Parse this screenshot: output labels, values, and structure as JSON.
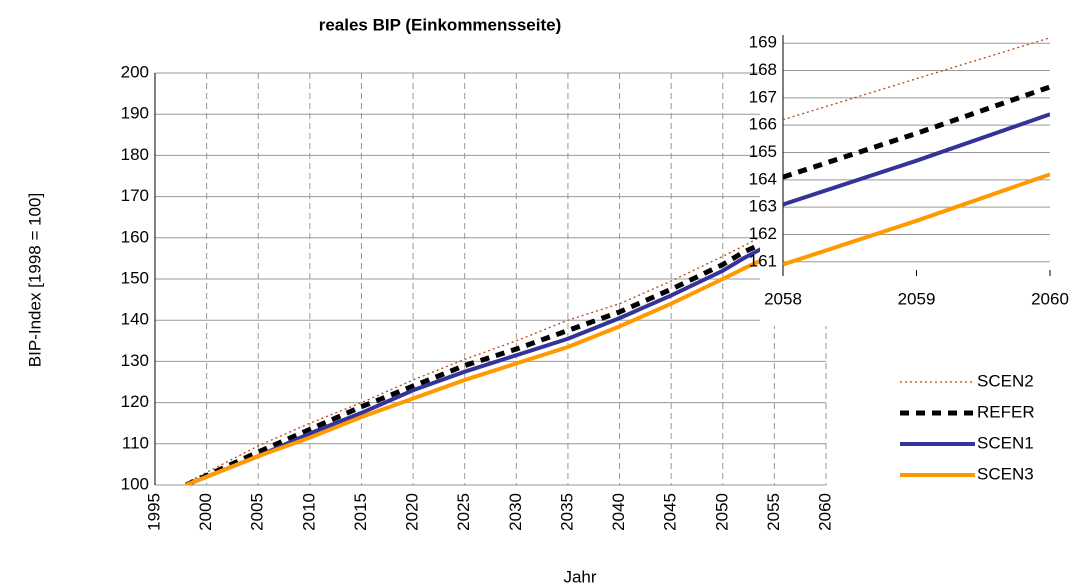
{
  "chart_data": [
    {
      "type": "line",
      "title": "reales BIP (Einkommensseite)",
      "x_label": "Jahr",
      "y_label": "BIP-Index [1998 = 100]",
      "x": [
        1998,
        2005,
        2010,
        2015,
        2020,
        2025,
        2030,
        2035,
        2040,
        2045,
        2050,
        2052,
        2055,
        2058,
        2059,
        2060
      ],
      "series": [
        {
          "name": "SCEN2",
          "color": "#b5461a",
          "dash": "dotted",
          "values": [
            100.5,
            109.5,
            115,
            120,
            125.5,
            130.5,
            135,
            140,
            144,
            149.5,
            155.5,
            158,
            162,
            166.2,
            167.7,
            169.2
          ]
        },
        {
          "name": "REFER",
          "color": "#000000",
          "dash": "dashed",
          "values": [
            100,
            108,
            113.5,
            119,
            124,
            129,
            133,
            137.5,
            142,
            147.5,
            153.5,
            156.5,
            160,
            164.1,
            165.7,
            167.4
          ]
        },
        {
          "name": "SCEN1",
          "color": "#333399",
          "dash": "solid",
          "values": [
            100,
            107,
            112.5,
            117.5,
            123,
            127.5,
            131.5,
            135.5,
            140.5,
            146,
            152,
            155,
            159,
            163.1,
            164.7,
            166.4
          ]
        },
        {
          "name": "SCEN3",
          "color": "#ff9900",
          "dash": "solid",
          "values": [
            100,
            107,
            111.5,
            116.5,
            121,
            125.5,
            129.5,
            133.5,
            138.5,
            144,
            150,
            152.5,
            156,
            160.9,
            162.5,
            164.2
          ]
        }
      ],
      "xlim": [
        1995,
        2060
      ],
      "xticks": [
        1995,
        2000,
        2005,
        2010,
        2015,
        2020,
        2025,
        2030,
        2035,
        2040,
        2045,
        2050,
        2055,
        2060
      ],
      "ylim": [
        100,
        200
      ],
      "yticks": [
        100,
        110,
        120,
        130,
        140,
        150,
        160,
        170,
        180,
        190,
        200
      ],
      "grid": true
    },
    {
      "type": "line",
      "x": [
        2058,
        2059,
        2060
      ],
      "series": [
        {
          "color": "#b5461a",
          "dash": "dotted",
          "values": [
            166.2,
            167.7,
            169.2
          ]
        },
        {
          "color": "#000000",
          "dash": "dashed",
          "values": [
            164.1,
            165.7,
            167.4
          ]
        },
        {
          "color": "#333399",
          "dash": "solid",
          "values": [
            163.1,
            164.7,
            166.4
          ]
        },
        {
          "color": "#ff9900",
          "dash": "solid",
          "values": [
            160.9,
            162.5,
            164.2
          ]
        }
      ],
      "xlim": [
        2058,
        2060
      ],
      "xticks": [
        2058,
        2059,
        2060
      ],
      "ylim": [
        160.7,
        169.3
      ],
      "yticks": [
        161,
        162,
        163,
        164,
        165,
        166,
        167,
        168,
        169
      ],
      "grid": true
    }
  ]
}
